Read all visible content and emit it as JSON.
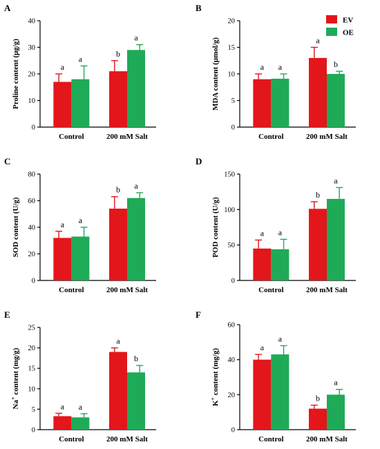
{
  "legend": {
    "entries": [
      {
        "name": "EV",
        "color": "#e3161b"
      },
      {
        "name": "OE",
        "color": "#1faa58"
      }
    ]
  },
  "chart_data": [
    {
      "panel": "A",
      "type": "bar",
      "ylabel": "Proline content (μg/g)",
      "ylabel_sup": "",
      "categories": [
        "Control",
        "200 mM Salt"
      ],
      "ylim": [
        0,
        40
      ],
      "yticks": [
        0,
        10,
        20,
        30,
        40
      ],
      "series": [
        {
          "name": "EV",
          "values": [
            17,
            21
          ],
          "errors": [
            3,
            4
          ],
          "letters": [
            "a",
            "b"
          ]
        },
        {
          "name": "OE",
          "values": [
            18,
            29
          ],
          "errors": [
            5,
            2
          ],
          "letters": [
            "a",
            "a"
          ]
        }
      ]
    },
    {
      "panel": "B",
      "type": "bar",
      "ylabel": "MDA content (μmol/g)",
      "ylabel_sup": "",
      "categories": [
        "Control",
        "200 mM Salt"
      ],
      "ylim": [
        0,
        20
      ],
      "yticks": [
        0,
        5,
        10,
        15,
        20
      ],
      "series": [
        {
          "name": "EV",
          "values": [
            9,
            13
          ],
          "errors": [
            1,
            2
          ],
          "letters": [
            "a",
            "a"
          ]
        },
        {
          "name": "OE",
          "values": [
            9.1,
            10
          ],
          "errors": [
            0.9,
            0.5
          ],
          "letters": [
            "a",
            "b"
          ]
        }
      ]
    },
    {
      "panel": "C",
      "type": "bar",
      "ylabel": "SOD content (U/g)",
      "ylabel_sup": "",
      "categories": [
        "Control",
        "200 mM Salt"
      ],
      "ylim": [
        0,
        80
      ],
      "yticks": [
        0,
        20,
        40,
        60,
        80
      ],
      "series": [
        {
          "name": "EV",
          "values": [
            32,
            54
          ],
          "errors": [
            5,
            9
          ],
          "letters": [
            "a",
            "b"
          ]
        },
        {
          "name": "OE",
          "values": [
            33,
            62
          ],
          "errors": [
            7,
            4
          ],
          "letters": [
            "a",
            "a"
          ]
        }
      ]
    },
    {
      "panel": "D",
      "type": "bar",
      "ylabel": "POD content (U/g)",
      "ylabel_sup": "",
      "categories": [
        "Control",
        "200 mM Salt"
      ],
      "ylim": [
        0,
        150
      ],
      "yticks": [
        0,
        50,
        100,
        150
      ],
      "series": [
        {
          "name": "EV",
          "values": [
            45,
            101
          ],
          "errors": [
            12,
            10
          ],
          "letters": [
            "a",
            "b"
          ]
        },
        {
          "name": "OE",
          "values": [
            44,
            115
          ],
          "errors": [
            14,
            16
          ],
          "letters": [
            "a",
            "a"
          ]
        }
      ]
    },
    {
      "panel": "E",
      "type": "bar",
      "ylabel": "Na content (mg/g)",
      "ylabel_sup": "+",
      "categories": [
        "Control",
        "200 mM Salt"
      ],
      "ylim": [
        0,
        25
      ],
      "yticks": [
        0,
        5,
        10,
        15,
        20,
        25
      ],
      "series": [
        {
          "name": "EV",
          "values": [
            3.3,
            19
          ],
          "errors": [
            0.7,
            1
          ],
          "letters": [
            "a",
            "a"
          ]
        },
        {
          "name": "OE",
          "values": [
            3,
            14
          ],
          "errors": [
            0.9,
            1.7
          ],
          "letters": [
            "a",
            "b"
          ]
        }
      ]
    },
    {
      "panel": "F",
      "type": "bar",
      "ylabel": "K content  (mg/g)",
      "ylabel_sup": "+",
      "categories": [
        "Control",
        "200 mM Salt"
      ],
      "ylim": [
        0,
        60
      ],
      "yticks": [
        0,
        20,
        40,
        60
      ],
      "series": [
        {
          "name": "EV",
          "values": [
            40,
            12
          ],
          "errors": [
            3,
            2
          ],
          "letters": [
            "a",
            "b"
          ]
        },
        {
          "name": "OE",
          "values": [
            43,
            20
          ],
          "errors": [
            5,
            3
          ],
          "letters": [
            "a",
            "a"
          ]
        }
      ]
    }
  ]
}
